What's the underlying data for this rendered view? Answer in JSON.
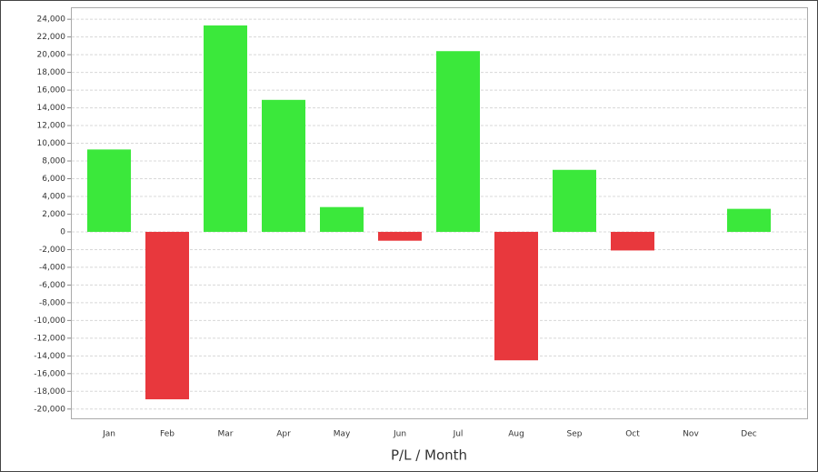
{
  "chart_data": {
    "type": "bar",
    "x_label": "P/L / Month",
    "categories": [
      "Jan",
      "Feb",
      "Mar",
      "Apr",
      "May",
      "Jun",
      "Jul",
      "Aug",
      "Sep",
      "Oct",
      "Nov",
      "Dec"
    ],
    "values": [
      9300,
      -18900,
      23300,
      14900,
      2800,
      -1000,
      20400,
      -14500,
      7000,
      -2100,
      0,
      2600
    ],
    "positive_color": "#3be83b",
    "negative_color": "#e8383d",
    "ylim": [
      -21100,
      25300
    ],
    "yticks": [
      {
        "value": -20000,
        "label": "-20,000"
      },
      {
        "value": -18000,
        "label": "-18,000"
      },
      {
        "value": -16000,
        "label": "-16,000"
      },
      {
        "value": -14000,
        "label": "-14,000"
      },
      {
        "value": -12000,
        "label": "-12,000"
      },
      {
        "value": -10000,
        "label": "-10,000"
      },
      {
        "value": -8000,
        "label": "-8,000"
      },
      {
        "value": -6000,
        "label": "-6,000"
      },
      {
        "value": -4000,
        "label": "-4,000"
      },
      {
        "value": -2000,
        "label": "-2,000"
      },
      0,
      {
        "value": 2000,
        "label": "2,000"
      },
      {
        "value": 4000,
        "label": "4,000"
      },
      {
        "value": 6000,
        "label": "6,000"
      },
      {
        "value": 8000,
        "label": "8,000"
      },
      {
        "value": 10000,
        "label": "10,000"
      },
      {
        "value": 12000,
        "label": "12,000"
      },
      {
        "value": 14000,
        "label": "14,000"
      },
      {
        "value": 16000,
        "label": "16,000"
      },
      {
        "value": 18000,
        "label": "18,000"
      },
      {
        "value": 20000,
        "label": "20,000"
      },
      {
        "value": 22000,
        "label": "22,000"
      },
      {
        "value": 24000,
        "label": "24,000"
      }
    ],
    "grid": true
  }
}
